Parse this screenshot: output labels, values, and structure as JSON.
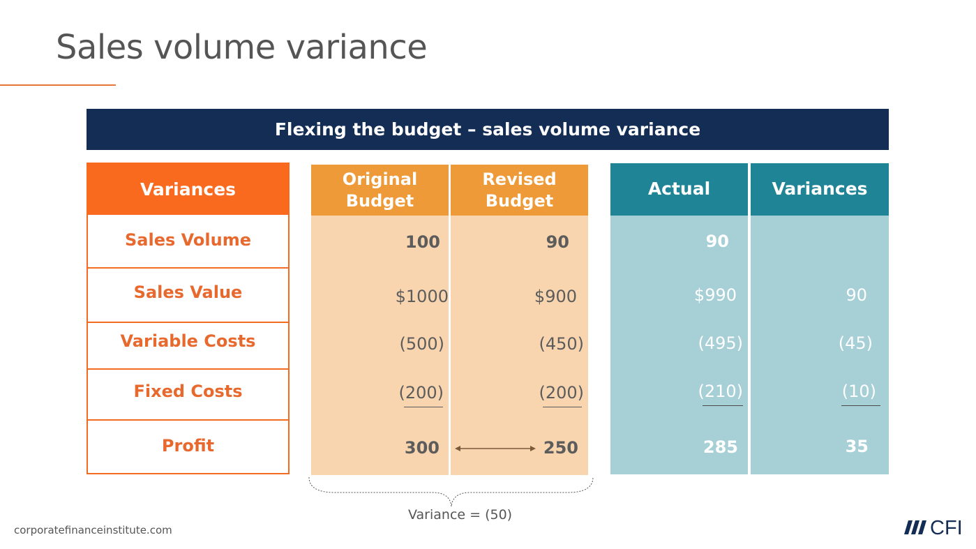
{
  "slide": {
    "title": "Sales volume variance",
    "banner": "Flexing the budget – sales volume variance",
    "footer": "corporatefinanceinstitute.com",
    "variance_note": "Variance = (50)",
    "logo_text": "CFI"
  },
  "labels": {
    "header": "Variances",
    "rows": [
      "Sales Volume",
      "Sales Value",
      "Variable Costs",
      "Fixed Costs",
      "Profit"
    ]
  },
  "original_budget": {
    "header_line1": "Original",
    "header_line2": "Budget",
    "values": [
      "100",
      "$1000",
      "(500)",
      "(200)",
      "300"
    ]
  },
  "revised_budget": {
    "header_line1": "Revised",
    "header_line2": "Budget",
    "values": [
      "90",
      "$900",
      "(450)",
      "(200)",
      "250"
    ]
  },
  "actual": {
    "header": "Actual",
    "values": [
      "90",
      "$990",
      "(495)",
      "(210)",
      "285"
    ]
  },
  "variances": {
    "header": "Variances",
    "values": [
      "",
      "90",
      "(45)",
      "(10)",
      "35"
    ]
  },
  "colors": {
    "banner": "#132d55",
    "label_accent": "#f26b21",
    "budget_header": "#ef9a38",
    "budget_body": "#f8d5ae",
    "actual_header": "#1f8596",
    "actual_body": "#a6cfd6",
    "title_rule": "#e8763a"
  }
}
